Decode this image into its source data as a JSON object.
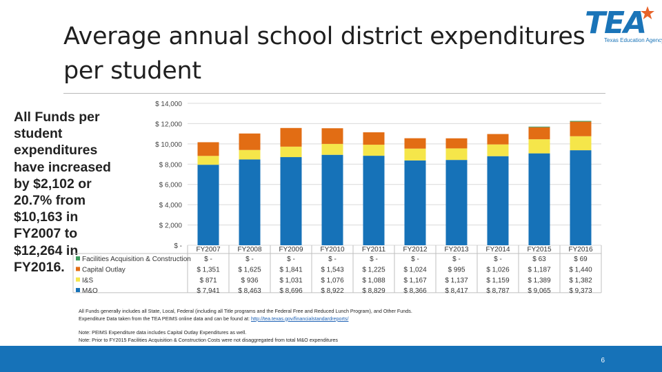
{
  "title": "Average annual school district expenditures per student",
  "logo": {
    "text": "TEA",
    "subtitle": "Texas Education Agency"
  },
  "side_note": "All Funds per student expenditures have increased by $2,102 or 20.7% from $10,163 in FY2007 to $12,264 in FY2016.",
  "footnote": {
    "line1": "All Funds generally includes all State, Local, Federal (including all Title programs and the Federal Free and Reduced Lunch Program), and Other Funds.",
    "line2_prefix": "Expenditure Data taken from the TEA PEIMS online data and can be found at:",
    "link": "http://tea.texas.gov/financialstandardreports/"
  },
  "notes": [
    "Note: PEIMS Expenditure data includes Capital Outlay Expenditures as well.",
    "Note: Prior to FY2015 Facilities Acquisition & Construction Costs were not disaggregated from total M&O expenditures"
  ],
  "page_number": "6",
  "colors": {
    "mo": "#1672b8",
    "is": "#f5e64a",
    "capital": "#e26d14",
    "facilities": "#3b9a5c",
    "bar_bg": "#1672b8"
  },
  "chart_data": {
    "type": "bar",
    "stacked": true,
    "categories": [
      "FY2007",
      "FY2008",
      "FY2009",
      "FY2010",
      "FY2011",
      "FY2012",
      "FY2013",
      "FY2014",
      "FY2015",
      "FY2016"
    ],
    "series": [
      {
        "name": "Facilities Acquisition & Construction",
        "color": "#3b9a5c",
        "values": [
          0,
          0,
          0,
          0,
          0,
          0,
          0,
          0,
          63,
          69
        ],
        "labels": [
          "$ -",
          "$ -",
          "$ -",
          "$ -",
          "$ -",
          "$ -",
          "$ -",
          "$ -",
          "$ 63",
          "$ 69"
        ]
      },
      {
        "name": "Capital Outlay",
        "color": "#e26d14",
        "values": [
          1351,
          1625,
          1841,
          1543,
          1225,
          1024,
          995,
          1026,
          1187,
          1440
        ],
        "labels": [
          "$ 1,351",
          "$ 1,625",
          "$ 1,841",
          "$ 1,543",
          "$ 1,225",
          "$ 1,024",
          "$ 995",
          "$ 1,026",
          "$ 1,187",
          "$ 1,440"
        ]
      },
      {
        "name": "I&S",
        "color": "#f5e64a",
        "values": [
          871,
          936,
          1031,
          1076,
          1088,
          1167,
          1137,
          1159,
          1389,
          1382
        ],
        "labels": [
          "$ 871",
          "$ 936",
          "$ 1,031",
          "$ 1,076",
          "$ 1,088",
          "$ 1,167",
          "$ 1,137",
          "$ 1,159",
          "$ 1,389",
          "$ 1,382"
        ]
      },
      {
        "name": "M&O",
        "color": "#1672b8",
        "values": [
          7941,
          8463,
          8696,
          8922,
          8829,
          8366,
          8417,
          8787,
          9065,
          9373
        ],
        "labels": [
          "$ 7,941",
          "$ 8,463",
          "$ 8,696",
          "$ 8,922",
          "$ 8,829",
          "$ 8,366",
          "$ 8,417",
          "$ 8,787",
          "$ 9,065",
          "$ 9,373"
        ]
      }
    ],
    "stack_order": [
      "M&O",
      "I&S",
      "Capital Outlay",
      "Facilities Acquisition & Construction"
    ],
    "ylim": [
      0,
      14000
    ],
    "yticks": [
      0,
      2000,
      4000,
      6000,
      8000,
      10000,
      12000,
      14000
    ],
    "ytick_labels": [
      "$ -",
      "$ 2,000",
      "$ 4,000",
      "$ 6,000",
      "$ 8,000",
      "$ 10,000",
      "$ 12,000",
      "$ 14,000"
    ],
    "grid": true,
    "legend": "data-table"
  }
}
